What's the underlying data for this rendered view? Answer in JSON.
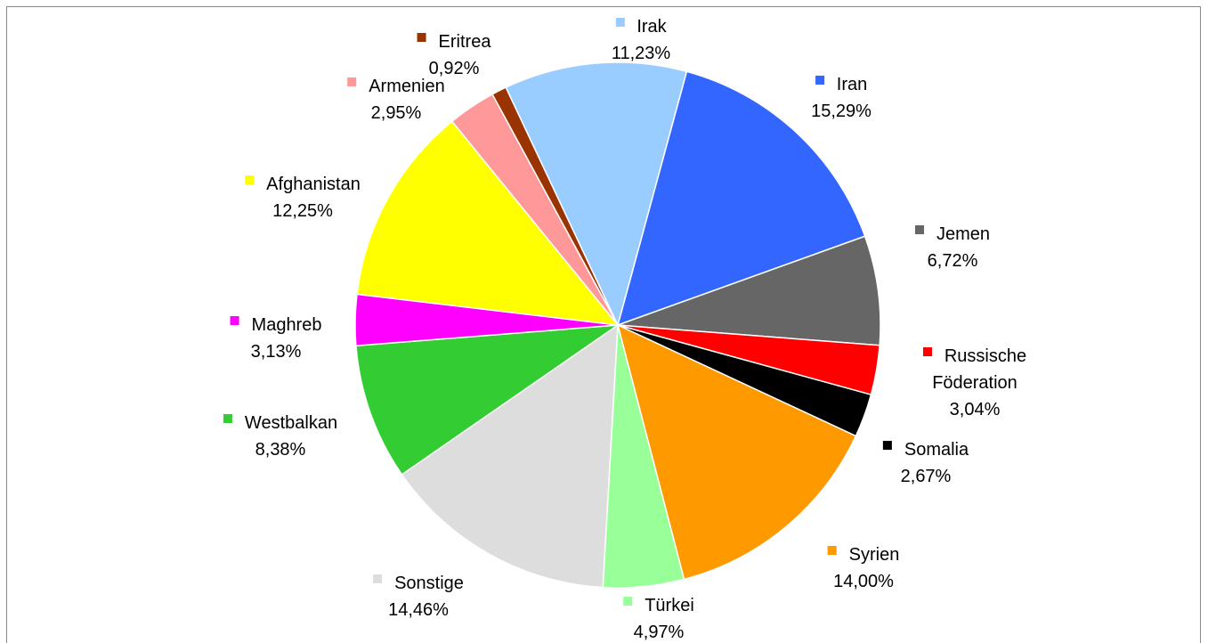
{
  "chart_data": {
    "type": "pie",
    "categories": [
      "Iran",
      "Jemen",
      "Russische Föderation",
      "Somalia",
      "Syrien",
      "Türkei",
      "Sonstige",
      "Westbalkan",
      "Maghreb",
      "Afghanistan",
      "Armenien",
      "Eritrea",
      "Irak"
    ],
    "values": [
      15.29,
      6.72,
      3.04,
      2.67,
      14.0,
      4.97,
      14.46,
      8.38,
      3.13,
      12.25,
      2.95,
      0.92,
      11.23
    ],
    "value_labels": [
      "15,29%",
      "6,72%",
      "3,04%",
      "2,67%",
      "14,00%",
      "4,97%",
      "14,46%",
      "8,38%",
      "3,13%",
      "12,25%",
      "2,95%",
      "0,92%",
      "11,23%"
    ],
    "colors": [
      "#3366ff",
      "#666666",
      "#ff0000",
      "#000000",
      "#ff9900",
      "#99ff99",
      "#dddddd",
      "#33cc33",
      "#ff00ff",
      "#ffff00",
      "#ff9999",
      "#993300",
      "#99ccff"
    ]
  }
}
